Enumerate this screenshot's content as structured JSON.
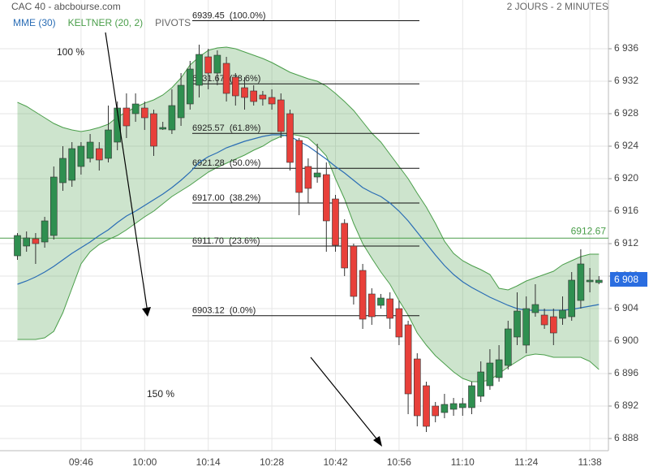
{
  "chart_data": {
    "type": "candlestick",
    "title": "CAC 40 - abcbourse.com",
    "subtitle": "2 JOURS - 2 MINUTES",
    "categories": [
      null,
      null,
      null,
      null,
      null,
      null,
      null,
      "09:46",
      null,
      null,
      null,
      null,
      null,
      null,
      "10:00",
      null,
      null,
      null,
      null,
      null,
      null,
      "10:14",
      null,
      null,
      null,
      null,
      null,
      null,
      "10:28",
      null,
      null,
      null,
      null,
      null,
      null,
      "10:42",
      null,
      null,
      null,
      null,
      null,
      null,
      "10:56",
      null,
      null,
      null,
      null,
      null,
      null,
      "11:10",
      null,
      null,
      null,
      null,
      null,
      null,
      "11:24",
      null,
      null,
      null,
      null,
      null,
      null,
      "11:38",
      null
    ],
    "open": [
      6910.5,
      6911.7,
      6912.6,
      6912.2,
      6913,
      6919.5,
      6919.8,
      6921.5,
      6922.5,
      6923.7,
      6922.5,
      6924.5,
      6928.7,
      6928,
      6928.7,
      6928,
      6926.1,
      6926,
      6927.5,
      6929.2,
      6931.5,
      6935,
      6933,
      6934.2,
      6932.5,
      6931.2,
      6930.8,
      6930.3,
      6930,
      6929.7,
      6928,
      6924.7,
      6921.5,
      6920.2,
      6920.5,
      6917.5,
      6914.5,
      6911.7,
      6908.7,
      6905.8,
      6904.4,
      6905.2,
      6904,
      6902,
      6897.8,
      6894.5,
      6892,
      6891.2,
      6891.6,
      6891.8,
      6891.8,
      6893.2,
      6894.5,
      6895.5,
      6897,
      6900.5,
      6899.5,
      6903.5,
      6903.2,
      6903,
      6902.8,
      6903,
      6905,
      6907.3,
      6907.2
    ],
    "high": [
      6913.3,
      6913.5,
      6913.3,
      6915.3,
      6921.5,
      6924,
      6924.5,
      6924.5,
      6925.5,
      6924.5,
      6929,
      6929.5,
      6930.5,
      6930.5,
      6929.5,
      6928.5,
      6927,
      6931,
      6933,
      6934.5,
      6936.5,
      6936,
      6935.8,
      6935,
      6933,
      6932.5,
      6931.5,
      6930.8,
      6931,
      6930.5,
      6928.5,
      6925,
      6922.5,
      6924.3,
      6922,
      6918,
      6915,
      6912,
      6909.5,
      6906.5,
      6905.8,
      6906,
      6905,
      6902.5,
      6898.5,
      6895,
      6892.5,
      6893.5,
      6893,
      6893,
      6895,
      6897.5,
      6899,
      6899.5,
      6902.5,
      6906,
      6905.5,
      6907,
      6904,
      6904,
      6905.5,
      6908.5,
      6911.3,
      6909,
      6908
    ],
    "low": [
      6910,
      6911,
      6909.5,
      6911.5,
      6912.5,
      6918.5,
      6919,
      6920.5,
      6922,
      6921,
      6922,
      6923.5,
      6925,
      6927,
      6926,
      6922.8,
      6926,
      6925.5,
      6926.5,
      6928.5,
      6930,
      6931,
      6931.5,
      6929.5,
      6929,
      6928.5,
      6929,
      6929,
      6928.5,
      6925,
      6921,
      6915.5,
      6917,
      6919.5,
      6911,
      6911,
      6908,
      6904.5,
      6901.5,
      6902,
      6904,
      6901.5,
      6899.5,
      6891,
      6889.5,
      6888.8,
      6890,
      6890.5,
      6890.8,
      6890.8,
      6891,
      6892.5,
      6894,
      6895,
      6896.5,
      6899.5,
      6898.5,
      6903,
      6901.5,
      6899.5,
      6902,
      6902.5,
      6904,
      6906,
      6907
    ],
    "close": [
      6913,
      6912.7,
      6912,
      6914.8,
      6920.2,
      6922.5,
      6923.7,
      6924,
      6924.5,
      6922.3,
      6926,
      6928.7,
      6926.5,
      6929.2,
      6927.5,
      6924,
      6926.3,
      6929,
      6931.5,
      6933.5,
      6935.3,
      6933,
      6935.2,
      6930.5,
      6930.2,
      6930,
      6929.5,
      6929.8,
      6929.2,
      6925.8,
      6922,
      6918.3,
      6918.8,
      6920.7,
      6914.8,
      6911.8,
      6909,
      6905.5,
      6902.7,
      6903,
      6905.3,
      6902.8,
      6900.5,
      6893.5,
      6890.8,
      6889.5,
      6890.8,
      6892.2,
      6892.3,
      6892.3,
      6894.5,
      6896.2,
      6897.3,
      6897.7,
      6901.5,
      6903.7,
      6904,
      6904.5,
      6902,
      6901,
      6903.8,
      6907.5,
      6909.5,
      6907.5,
      6907.5
    ],
    "up_color": "#2f8f50",
    "down_color": "#e8403a",
    "series": [
      {
        "name": "MME (30)",
        "color": "#2a6db5",
        "values": [
          6907,
          6907.4,
          6907.9,
          6908.5,
          6909.2,
          6910,
          6910.8,
          6911.5,
          6912.2,
          6913,
          6913.7,
          6914.6,
          6915.4,
          6916,
          6916.7,
          6917.4,
          6918.1,
          6918.9,
          6919.8,
          6920.8,
          6922,
          6922.7,
          6923.2,
          6923.8,
          6924.2,
          6924.6,
          6924.9,
          6925.2,
          6925.4,
          6925.4,
          6925.2,
          6924.6,
          6924,
          6923.2,
          6922.4,
          6921.5,
          6920.7,
          6919.8,
          6918.9,
          6918.3,
          6917.8,
          6917,
          6916,
          6914.8,
          6913.4,
          6912,
          6910.6,
          6909.3,
          6908.2,
          6907.3,
          6906.6,
          6906,
          6905.4,
          6904.9,
          6904.4,
          6904,
          6903.8,
          6903.8,
          6903.8,
          6903.8,
          6903.8,
          6903.9,
          6904.1,
          6904.3,
          6904.5
        ]
      }
    ],
    "keltner": {
      "name": "KELTNER (20, 2)",
      "color": "#4a9e4a",
      "upper": [
        6929.4,
        6928.9,
        6928.2,
        6927.5,
        6926.8,
        6926.3,
        6926,
        6925.8,
        6926,
        6926.3,
        6926.7,
        6927.6,
        6928.2,
        6928.8,
        6929.3,
        6929.7,
        6930.3,
        6931.2,
        6932.4,
        6934,
        6935,
        6935.8,
        6936.1,
        6936.2,
        6936,
        6935.6,
        6935.2,
        6934.8,
        6934.3,
        6933.7,
        6933.1,
        6932.7,
        6932.3,
        6932,
        6931.4,
        6930.5,
        6929.5,
        6928.4,
        6927,
        6925.6,
        6924.5,
        6923,
        6921.5,
        6920,
        6918.2,
        6916.5,
        6914.5,
        6912.3,
        6910.8,
        6909.9,
        6909.3,
        6908.8,
        6908.2,
        6906.5,
        6906.3,
        6906.8,
        6907.4,
        6907.8,
        6908.2,
        6908.6,
        6909.4,
        6909.9,
        6910.4,
        6910.7,
        6910.7
      ],
      "lower": [
        6900.2,
        6900.2,
        6900.2,
        6900.4,
        6901.2,
        6903.5,
        6906.5,
        6909.5,
        6911,
        6911.9,
        6912.5,
        6913,
        6913.7,
        6914.5,
        6915.3,
        6916,
        6916.9,
        6917.8,
        6918.5,
        6919.2,
        6920,
        6920.8,
        6921.4,
        6921.9,
        6922.4,
        6922.9,
        6923.5,
        6924,
        6924.7,
        6925.2,
        6925.5,
        6925.3,
        6925,
        6924,
        6922.8,
        6920,
        6917.5,
        6914.5,
        6912,
        6910.2,
        6908.5,
        6907,
        6905,
        6903.2,
        6901,
        6899.5,
        6898.2,
        6897.2,
        6896.2,
        6895.4,
        6895,
        6895,
        6895.2,
        6896,
        6896.8,
        6897.5,
        6898.2,
        6898.4,
        6898.3,
        6898,
        6898,
        6898,
        6898,
        6897.5,
        6896.5
      ]
    },
    "pivots": {
      "name": "PIVOTS",
      "color": "#666666"
    },
    "fibonacci": [
      {
        "value": 6939.45,
        "label": "6939.45  (100.0%)"
      },
      {
        "value": 6931.67,
        "label": "6931.67  (78.6%)"
      },
      {
        "value": 6925.57,
        "label": "6925.57  (61.8%)"
      },
      {
        "value": 6921.28,
        "label": "6921.28  (50.0%)"
      },
      {
        "value": 6917.0,
        "label": "6917.00  (38.2%)"
      },
      {
        "value": 6911.7,
        "label": "6911.70  (23.6%)"
      },
      {
        "value": 6903.12,
        "label": "6903.12  (0.0%)"
      }
    ],
    "reference_line": {
      "value": 6912.67,
      "color": "#4a9e4a"
    },
    "last_price": {
      "value": 6907.6,
      "label": "6 908",
      "color": "#2a6de0"
    },
    "annotations": [
      {
        "text": "100 %"
      },
      {
        "text": "150 %"
      }
    ],
    "ylim": [
      6886.5,
      6942
    ],
    "yticks": [
      {
        "value": 6888,
        "label": "6 888"
      },
      {
        "value": 6892,
        "label": "6 892"
      },
      {
        "value": 6896,
        "label": "6 896"
      },
      {
        "value": 6900,
        "label": "6 900"
      },
      {
        "value": 6904,
        "label": "6 904"
      },
      {
        "value": 6908,
        "label": "6 908"
      },
      {
        "value": 6912,
        "label": "6 912"
      },
      {
        "value": 6916,
        "label": "6 916"
      },
      {
        "value": 6920,
        "label": "6 920"
      },
      {
        "value": 6924,
        "label": "6 924"
      },
      {
        "value": 6928,
        "label": "6 928"
      },
      {
        "value": 6932,
        "label": "6 932"
      },
      {
        "value": 6936,
        "label": "6 936"
      }
    ],
    "grid": true
  }
}
